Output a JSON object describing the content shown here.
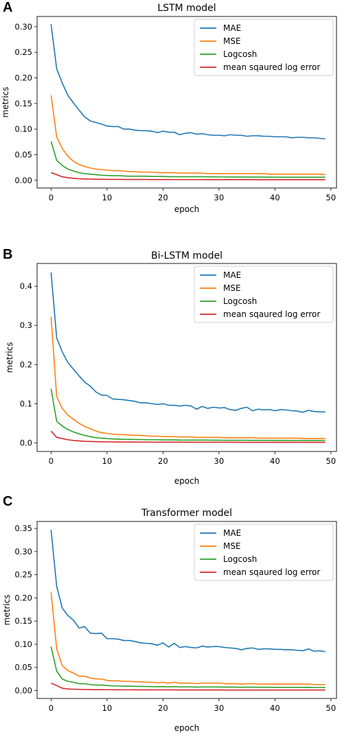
{
  "panels": [
    {
      "letter": "A"
    },
    {
      "letter": "B"
    },
    {
      "letter": "C"
    }
  ],
  "chart_data": [
    {
      "type": "line",
      "title": "LSTM model",
      "xlabel": "epoch",
      "ylabel": "metrics",
      "xlim": [
        -2.5,
        51
      ],
      "ylim": [
        -0.015,
        0.32
      ],
      "xticks": [
        0,
        10,
        20,
        30,
        40,
        50
      ],
      "yticks": [
        0.0,
        0.05,
        0.1,
        0.15,
        0.2,
        0.25,
        0.3
      ],
      "ytick_labels": [
        "0.00",
        "0.05",
        "0.10",
        "0.15",
        "0.20",
        "0.25",
        "0.30"
      ],
      "legend_position": "top-right",
      "x": [
        0,
        1,
        2,
        3,
        4,
        5,
        6,
        7,
        8,
        9,
        10,
        11,
        12,
        13,
        14,
        15,
        16,
        17,
        18,
        19,
        20,
        21,
        22,
        23,
        24,
        25,
        26,
        27,
        28,
        29,
        30,
        31,
        32,
        33,
        34,
        35,
        36,
        37,
        38,
        39,
        40,
        41,
        42,
        43,
        44,
        45,
        46,
        47,
        48,
        49
      ],
      "series": [
        {
          "name": "MAE",
          "color": "#1f77b4",
          "values": [
            0.305,
            0.218,
            0.19,
            0.166,
            0.151,
            0.137,
            0.124,
            0.116,
            0.113,
            0.11,
            0.106,
            0.105,
            0.105,
            0.1,
            0.1,
            0.098,
            0.097,
            0.097,
            0.096,
            0.093,
            0.096,
            0.094,
            0.094,
            0.089,
            0.092,
            0.093,
            0.09,
            0.091,
            0.089,
            0.088,
            0.088,
            0.087,
            0.089,
            0.088,
            0.088,
            0.086,
            0.087,
            0.087,
            0.086,
            0.086,
            0.085,
            0.085,
            0.085,
            0.083,
            0.084,
            0.084,
            0.083,
            0.083,
            0.082,
            0.081
          ]
        },
        {
          "name": "MSE",
          "color": "#ff7f0e",
          "values": [
            0.166,
            0.085,
            0.062,
            0.047,
            0.037,
            0.031,
            0.027,
            0.024,
            0.022,
            0.021,
            0.02,
            0.019,
            0.019,
            0.018,
            0.017,
            0.017,
            0.016,
            0.016,
            0.016,
            0.015,
            0.015,
            0.015,
            0.015,
            0.014,
            0.014,
            0.014,
            0.014,
            0.014,
            0.013,
            0.013,
            0.013,
            0.013,
            0.013,
            0.013,
            0.013,
            0.013,
            0.013,
            0.013,
            0.013,
            0.012,
            0.012,
            0.012,
            0.012,
            0.012,
            0.012,
            0.012,
            0.012,
            0.012,
            0.012,
            0.011
          ]
        },
        {
          "name": "Logcosh",
          "color": "#2ca02c",
          "values": [
            0.076,
            0.039,
            0.029,
            0.022,
            0.018,
            0.015,
            0.013,
            0.012,
            0.011,
            0.01,
            0.0095,
            0.009,
            0.009,
            0.0085,
            0.008,
            0.008,
            0.008,
            0.008,
            0.0075,
            0.0075,
            0.0075,
            0.007,
            0.007,
            0.007,
            0.007,
            0.007,
            0.007,
            0.007,
            0.0068,
            0.0068,
            0.0066,
            0.0066,
            0.0065,
            0.0065,
            0.0065,
            0.0063,
            0.0063,
            0.0063,
            0.0062,
            0.0062,
            0.0061,
            0.0061,
            0.006,
            0.006,
            0.006,
            0.006,
            0.006,
            0.006,
            0.006,
            0.006
          ]
        },
        {
          "name": "mean sqaured log error",
          "color": "#d62728",
          "values": [
            0.015,
            0.011,
            0.007,
            0.005,
            0.004,
            0.003,
            0.0027,
            0.0024,
            0.0022,
            0.002,
            0.0019,
            0.0018,
            0.0018,
            0.0017,
            0.0017,
            0.0016,
            0.0016,
            0.0016,
            0.0015,
            0.0015,
            0.0015,
            0.0015,
            0.0014,
            0.0014,
            0.0014,
            0.0014,
            0.0014,
            0.0014,
            0.0013,
            0.0013,
            0.0013,
            0.0013,
            0.0013,
            0.0013,
            0.0013,
            0.0013,
            0.0013,
            0.0012,
            0.0012,
            0.0012,
            0.0012,
            0.0012,
            0.0012,
            0.0012,
            0.0012,
            0.0012,
            0.0012,
            0.0012,
            0.0012,
            0.0012
          ]
        }
      ]
    },
    {
      "type": "line",
      "title": "Bi-LSTM model",
      "xlabel": "epoch",
      "ylabel": "metrics",
      "xlim": [
        -2.5,
        51
      ],
      "ylim": [
        -0.022,
        0.458
      ],
      "xticks": [
        0,
        10,
        20,
        30,
        40,
        50
      ],
      "yticks": [
        0.0,
        0.1,
        0.2,
        0.3,
        0.4
      ],
      "ytick_labels": [
        "0.0",
        "0.1",
        "0.2",
        "0.3",
        "0.4"
      ],
      "legend_position": "top-right",
      "x": [
        0,
        1,
        2,
        3,
        4,
        5,
        6,
        7,
        8,
        9,
        10,
        11,
        12,
        13,
        14,
        15,
        16,
        17,
        18,
        19,
        20,
        21,
        22,
        23,
        24,
        25,
        26,
        27,
        28,
        29,
        30,
        31,
        32,
        33,
        34,
        35,
        36,
        37,
        38,
        39,
        40,
        41,
        42,
        43,
        44,
        45,
        46,
        47,
        48,
        49
      ],
      "series": [
        {
          "name": "MAE",
          "color": "#1f77b4",
          "values": [
            0.435,
            0.268,
            0.232,
            0.205,
            0.188,
            0.171,
            0.155,
            0.145,
            0.13,
            0.122,
            0.121,
            0.112,
            0.111,
            0.11,
            0.108,
            0.106,
            0.102,
            0.102,
            0.1,
            0.098,
            0.1,
            0.096,
            0.096,
            0.094,
            0.096,
            0.094,
            0.086,
            0.093,
            0.088,
            0.091,
            0.089,
            0.09,
            0.085,
            0.083,
            0.088,
            0.091,
            0.082,
            0.086,
            0.084,
            0.085,
            0.082,
            0.085,
            0.084,
            0.082,
            0.081,
            0.078,
            0.083,
            0.08,
            0.079,
            0.079
          ]
        },
        {
          "name": "MSE",
          "color": "#ff7f0e",
          "values": [
            0.322,
            0.118,
            0.088,
            0.071,
            0.06,
            0.05,
            0.042,
            0.036,
            0.03,
            0.026,
            0.024,
            0.022,
            0.021,
            0.021,
            0.02,
            0.019,
            0.019,
            0.018,
            0.017,
            0.017,
            0.016,
            0.016,
            0.016,
            0.015,
            0.015,
            0.015,
            0.014,
            0.014,
            0.014,
            0.014,
            0.014,
            0.013,
            0.013,
            0.013,
            0.013,
            0.013,
            0.013,
            0.012,
            0.012,
            0.012,
            0.012,
            0.012,
            0.012,
            0.012,
            0.012,
            0.011,
            0.011,
            0.011,
            0.011,
            0.011
          ]
        },
        {
          "name": "Logcosh",
          "color": "#2ca02c",
          "values": [
            0.138,
            0.055,
            0.043,
            0.034,
            0.028,
            0.023,
            0.019,
            0.016,
            0.013,
            0.012,
            0.011,
            0.01,
            0.0095,
            0.009,
            0.009,
            0.0085,
            0.0085,
            0.008,
            0.008,
            0.008,
            0.0075,
            0.0075,
            0.0075,
            0.007,
            0.007,
            0.007,
            0.007,
            0.007,
            0.007,
            0.0068,
            0.0068,
            0.0066,
            0.0066,
            0.0065,
            0.0065,
            0.0065,
            0.0063,
            0.0063,
            0.0063,
            0.0062,
            0.0062,
            0.0061,
            0.0061,
            0.006,
            0.006,
            0.006,
            0.006,
            0.006,
            0.006,
            0.006
          ]
        },
        {
          "name": "mean sqaured log error",
          "color": "#d62728",
          "values": [
            0.03,
            0.014,
            0.011,
            0.008,
            0.006,
            0.005,
            0.004,
            0.0035,
            0.003,
            0.0027,
            0.0025,
            0.0023,
            0.0022,
            0.0021,
            0.002,
            0.002,
            0.0019,
            0.0019,
            0.0018,
            0.0018,
            0.0018,
            0.0017,
            0.0017,
            0.0017,
            0.0016,
            0.0016,
            0.0016,
            0.0016,
            0.0015,
            0.0015,
            0.0015,
            0.0015,
            0.0015,
            0.0015,
            0.0014,
            0.0014,
            0.0014,
            0.0014,
            0.0014,
            0.0014,
            0.0014,
            0.0013,
            0.0013,
            0.0013,
            0.0013,
            0.0013,
            0.0013,
            0.0013,
            0.0013,
            0.0013
          ]
        }
      ]
    },
    {
      "type": "line",
      "title": "Transformer model",
      "xlabel": "epoch",
      "ylabel": "metrics",
      "xlim": [
        -2.5,
        51
      ],
      "ylim": [
        -0.017,
        0.365
      ],
      "xticks": [
        0,
        10,
        20,
        30,
        40,
        50
      ],
      "yticks": [
        0.0,
        0.05,
        0.1,
        0.15,
        0.2,
        0.25,
        0.3,
        0.35
      ],
      "ytick_labels": [
        "0.00",
        "0.05",
        "0.10",
        "0.15",
        "0.20",
        "0.25",
        "0.30",
        "0.35"
      ],
      "legend_position": "top-right",
      "x": [
        0,
        1,
        2,
        3,
        4,
        5,
        6,
        7,
        8,
        9,
        10,
        11,
        12,
        13,
        14,
        15,
        16,
        17,
        18,
        19,
        20,
        21,
        22,
        23,
        24,
        25,
        26,
        27,
        28,
        29,
        30,
        31,
        32,
        33,
        34,
        35,
        36,
        37,
        38,
        39,
        40,
        41,
        42,
        43,
        44,
        45,
        46,
        47,
        48,
        49
      ],
      "series": [
        {
          "name": "MAE",
          "color": "#1f77b4",
          "values": [
            0.347,
            0.225,
            0.178,
            0.162,
            0.152,
            0.135,
            0.138,
            0.124,
            0.123,
            0.124,
            0.112,
            0.112,
            0.111,
            0.108,
            0.108,
            0.106,
            0.103,
            0.102,
            0.101,
            0.098,
            0.103,
            0.094,
            0.102,
            0.093,
            0.095,
            0.093,
            0.092,
            0.096,
            0.094,
            0.095,
            0.095,
            0.093,
            0.092,
            0.091,
            0.088,
            0.091,
            0.092,
            0.089,
            0.09,
            0.09,
            0.089,
            0.089,
            0.088,
            0.088,
            0.087,
            0.086,
            0.09,
            0.085,
            0.086,
            0.084
          ]
        },
        {
          "name": "MSE",
          "color": "#ff7f0e",
          "values": [
            0.212,
            0.09,
            0.054,
            0.043,
            0.038,
            0.031,
            0.031,
            0.027,
            0.025,
            0.025,
            0.022,
            0.021,
            0.021,
            0.02,
            0.02,
            0.019,
            0.019,
            0.018,
            0.018,
            0.017,
            0.018,
            0.016,
            0.018,
            0.016,
            0.016,
            0.016,
            0.015,
            0.016,
            0.016,
            0.016,
            0.016,
            0.015,
            0.015,
            0.015,
            0.014,
            0.015,
            0.015,
            0.014,
            0.014,
            0.014,
            0.014,
            0.014,
            0.014,
            0.014,
            0.014,
            0.014,
            0.014,
            0.013,
            0.013,
            0.013
          ]
        },
        {
          "name": "Logcosh",
          "color": "#2ca02c",
          "values": [
            0.095,
            0.042,
            0.025,
            0.02,
            0.018,
            0.015,
            0.015,
            0.013,
            0.012,
            0.012,
            0.011,
            0.01,
            0.01,
            0.0095,
            0.0095,
            0.009,
            0.009,
            0.0088,
            0.0086,
            0.0084,
            0.0086,
            0.008,
            0.0085,
            0.008,
            0.008,
            0.008,
            0.0076,
            0.0078,
            0.0078,
            0.0078,
            0.0077,
            0.0075,
            0.0075,
            0.0074,
            0.0072,
            0.0073,
            0.0073,
            0.0072,
            0.0071,
            0.0071,
            0.007,
            0.007,
            0.007,
            0.007,
            0.0069,
            0.0068,
            0.007,
            0.0067,
            0.0067,
            0.0066
          ]
        },
        {
          "name": "mean sqaured log error",
          "color": "#d62728",
          "values": [
            0.016,
            0.011,
            0.005,
            0.0035,
            0.003,
            0.0026,
            0.0024,
            0.0022,
            0.002,
            0.002,
            0.0019,
            0.0018,
            0.0018,
            0.0017,
            0.0017,
            0.0016,
            0.0016,
            0.0016,
            0.0015,
            0.0015,
            0.0015,
            0.0015,
            0.0015,
            0.0014,
            0.0014,
            0.0014,
            0.0014,
            0.0014,
            0.0014,
            0.0014,
            0.0014,
            0.0013,
            0.0013,
            0.0013,
            0.0013,
            0.0013,
            0.0013,
            0.0013,
            0.0013,
            0.0013,
            0.0013,
            0.0013,
            0.0013,
            0.0012,
            0.0012,
            0.0012,
            0.0012,
            0.0012,
            0.0012,
            0.0012
          ]
        }
      ]
    }
  ]
}
